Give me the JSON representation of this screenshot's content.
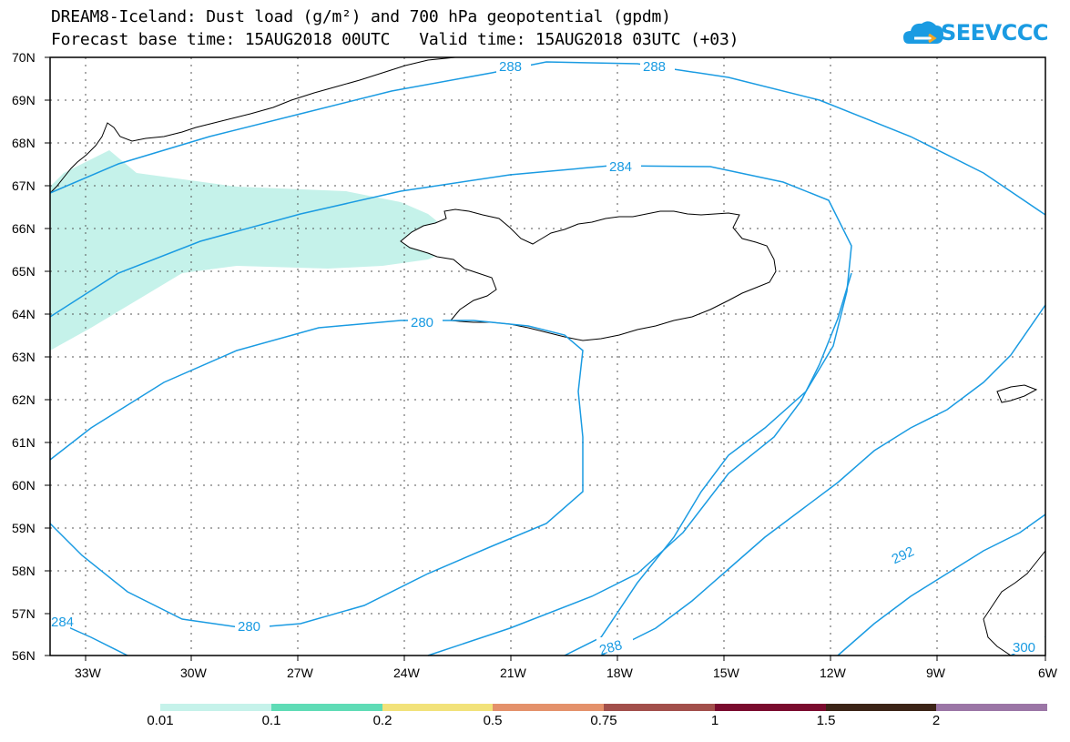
{
  "title": {
    "line1": "DREAM8-Iceland: Dust load (g/m²) and 700 hPa geopotential (gpdm)",
    "line2": "Forecast base time: 15AUG2018 00UTC   Valid time: 15AUG2018 03UTC (+03)"
  },
  "logo": {
    "text": "SEEVCCC",
    "icon": "cloud-logo-icon"
  },
  "map": {
    "lat_labels": [
      "70N",
      "69N",
      "68N",
      "67N",
      "66N",
      "65N",
      "64N",
      "63N",
      "62N",
      "61N",
      "60N",
      "59N",
      "58N",
      "57N",
      "56N"
    ],
    "lon_labels": [
      "33W",
      "30W",
      "27W",
      "24W",
      "21W",
      "18W",
      "15W",
      "12W",
      "9W",
      "6W"
    ],
    "contour_labels": [
      "288",
      "288",
      "284",
      "280",
      "280",
      "284",
      "288",
      "292",
      "300"
    ],
    "contour_color": "#1a9be2",
    "dust_color": "#c5f2ea"
  },
  "colorbar": {
    "labels": [
      "0.01",
      "0.1",
      "0.2",
      "0.5",
      "0.75",
      "1",
      "1.5",
      "2"
    ],
    "colors": [
      "#c5f2ea",
      "#5fdcb6",
      "#f2e27a",
      "#e4916b",
      "#a24f4b",
      "#7a0b2e",
      "#3c2417",
      "#9b76a6"
    ]
  }
}
